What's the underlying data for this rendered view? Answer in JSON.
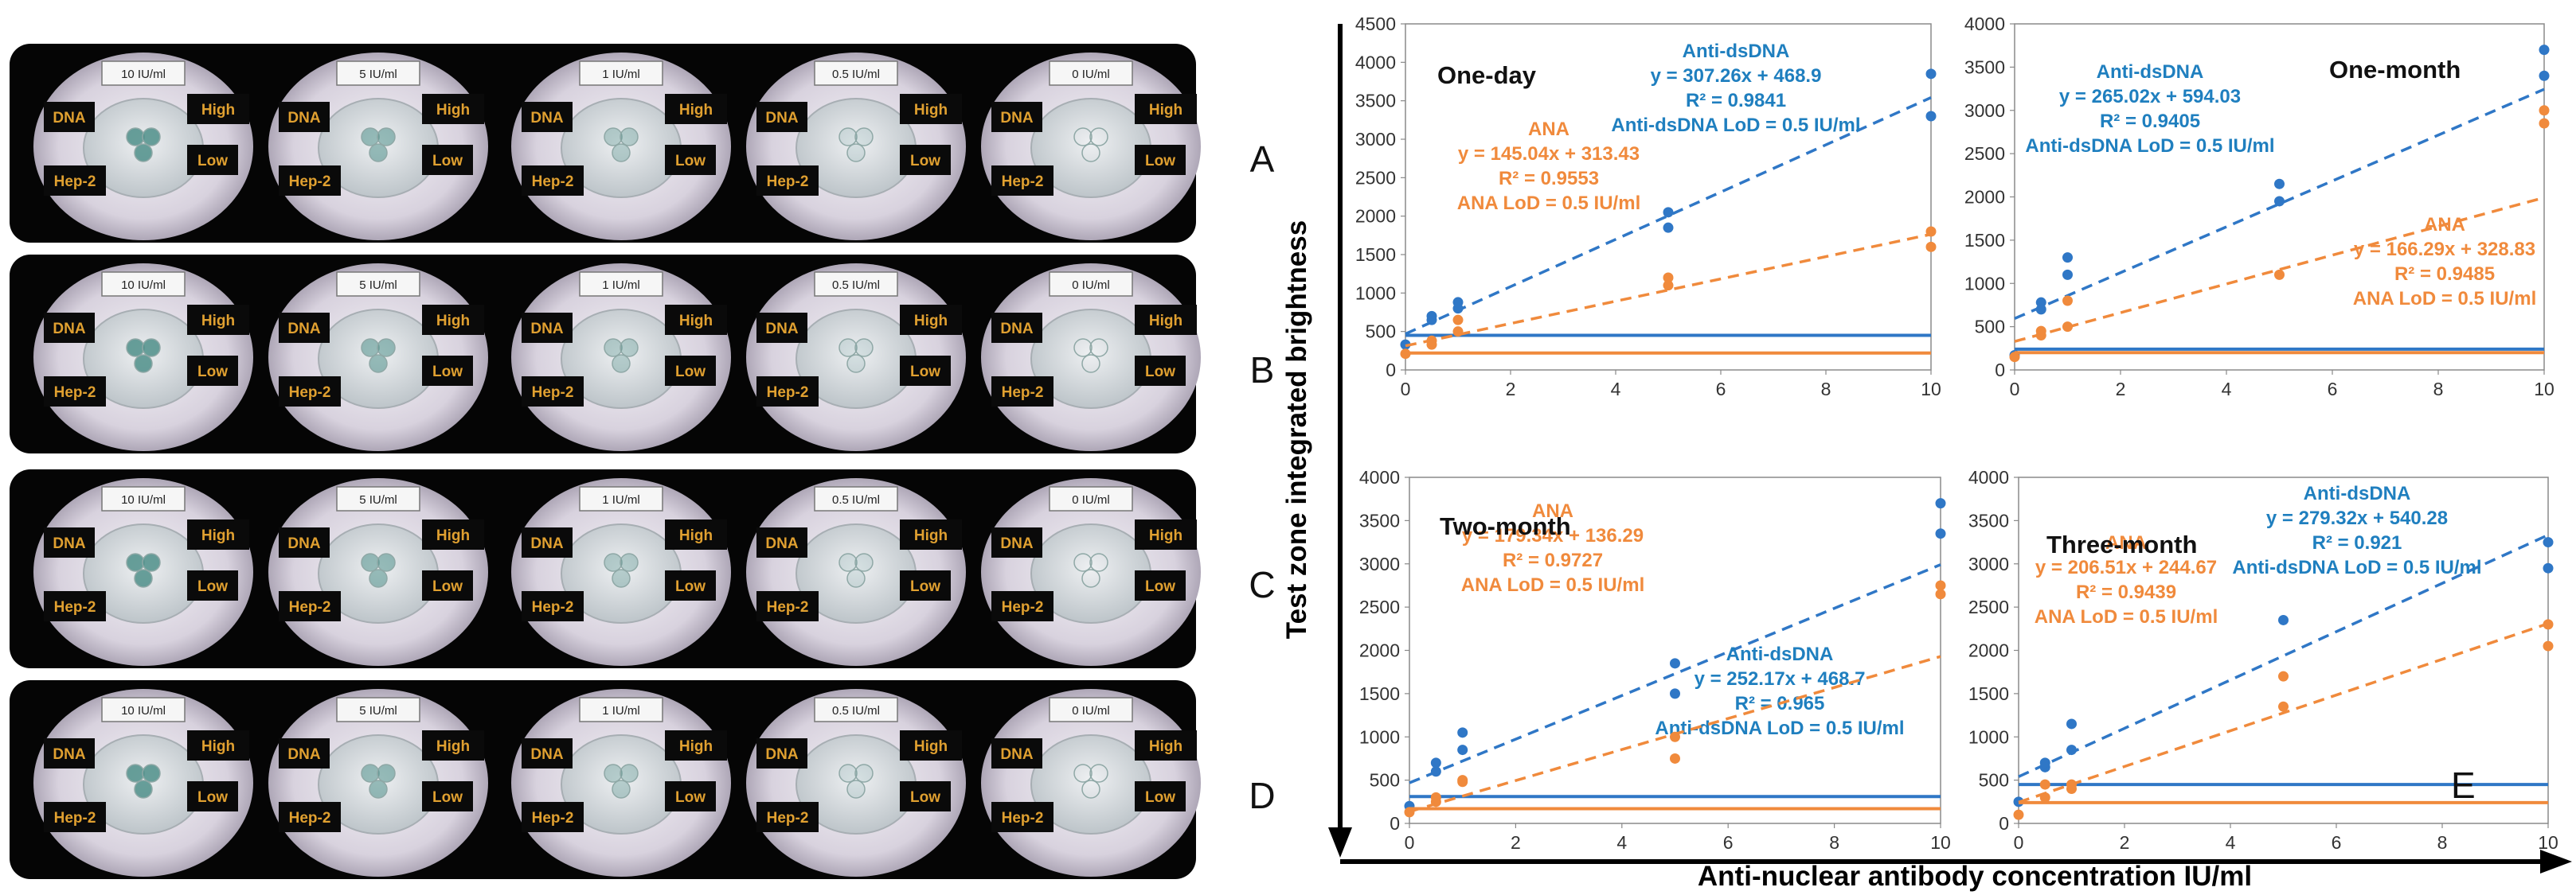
{
  "colors": {
    "blue": "#2f77c6",
    "orange": "#f08a3c",
    "ann_blue": "#1f7fbf",
    "panel_bg": "#050505",
    "label_box": "#0a0a0a",
    "label_text": "#e0a030"
  },
  "photo_panels": {
    "rows": [
      {
        "label": "A",
        "conc": [
          "10 IU/ml",
          "5 IU/ml",
          "1 IU/ml",
          "0.5 IU/ml",
          "0 IU/ml"
        ]
      },
      {
        "label": "B",
        "conc": [
          "10 IU/ml",
          "5 IU/ml",
          "1 IU/ml",
          "0.5 IU/ml",
          "0 IU/ml"
        ]
      },
      {
        "label": "C",
        "conc": [
          "10 IU/ml",
          "5 IU/ml",
          "1 IU/ml",
          "0.5 IU/ml",
          "0 IU/ml"
        ]
      },
      {
        "label": "D",
        "conc": [
          "10 IU/ml",
          "5 IU/ml",
          "1 IU/ml",
          "0.5 IU/ml",
          "0 IU/ml"
        ]
      }
    ],
    "zone_labels": {
      "dna": "DNA",
      "high": "High",
      "hep2": "Hep-2",
      "low": "Low"
    }
  },
  "figure": {
    "y_label": "Test zone integrated brightness",
    "x_label": "Anti-nuclear antibody concentration IU/ml",
    "panel_letter": "E"
  },
  "chart_data": [
    {
      "type": "scatter",
      "title": "One-day",
      "xlim": [
        0,
        10
      ],
      "ylim": [
        0,
        4500
      ],
      "x_ticks": [
        "0",
        "2",
        "4",
        "6",
        "8",
        "10"
      ],
      "y_ticks": [
        "0",
        "500",
        "1000",
        "1500",
        "2000",
        "2500",
        "3000",
        "3500",
        "4000",
        "4500"
      ],
      "series": [
        {
          "name": "Anti-dsDNA",
          "color": "blue",
          "points": [
            [
              0,
              330
            ],
            [
              0.5,
              650
            ],
            [
              0.5,
              700
            ],
            [
              1,
              800
            ],
            [
              1,
              880
            ],
            [
              5,
              1850
            ],
            [
              5,
              2050
            ],
            [
              10,
              3300
            ],
            [
              10,
              3850
            ]
          ],
          "fit": {
            "slope": 307.26,
            "intercept": 468.9
          },
          "lod_level": 450,
          "annotation": [
            "Anti-dsDNA",
            "y = 307.26x + 468.9",
            "R² = 0.9841",
            "Anti-dsDNA LoD = 0.5 IU/ml"
          ]
        },
        {
          "name": "ANA",
          "color": "orange",
          "points": [
            [
              0,
              210
            ],
            [
              0.5,
              330
            ],
            [
              0.5,
              380
            ],
            [
              1,
              500
            ],
            [
              1,
              650
            ],
            [
              5,
              1100
            ],
            [
              5,
              1200
            ],
            [
              10,
              1600
            ],
            [
              10,
              1800
            ]
          ],
          "fit": {
            "slope": 145.04,
            "intercept": 313.43
          },
          "lod_level": 220,
          "annotation": [
            "ANA",
            "y = 145.04x + 313.43",
            "R² = 0.9553",
            "ANA LoD = 0.5 IU/ml"
          ]
        }
      ]
    },
    {
      "type": "scatter",
      "title": "One-month",
      "xlim": [
        0,
        10
      ],
      "ylim": [
        0,
        4000
      ],
      "x_ticks": [
        "0",
        "2",
        "4",
        "6",
        "8",
        "10"
      ],
      "y_ticks": [
        "0",
        "500",
        "1000",
        "1500",
        "2000",
        "2500",
        "3000",
        "3500",
        "4000"
      ],
      "series": [
        {
          "name": "Anti-dsDNA",
          "color": "blue",
          "points": [
            [
              0,
              170
            ],
            [
              0.5,
              700
            ],
            [
              0.5,
              780
            ],
            [
              1,
              1100
            ],
            [
              1,
              1300
            ],
            [
              5,
              1950
            ],
            [
              5,
              2150
            ],
            [
              10,
              3400
            ],
            [
              10,
              3700
            ]
          ],
          "fit": {
            "slope": 265.02,
            "intercept": 594.03
          },
          "lod_level": 240,
          "annotation": [
            "Anti-dsDNA",
            "y = 265.02x + 594.03",
            "R² = 0.9405",
            "Anti-dsDNA LoD = 0.5 IU/ml"
          ]
        },
        {
          "name": "ANA",
          "color": "orange",
          "points": [
            [
              0,
              150
            ],
            [
              0.5,
              400
            ],
            [
              0.5,
              450
            ],
            [
              1,
              500
            ],
            [
              1,
              800
            ],
            [
              5,
              1100
            ],
            [
              10,
              2850
            ],
            [
              10,
              3000
            ]
          ],
          "fit": {
            "slope": 166.29,
            "intercept": 328.83
          },
          "lod_level": 200,
          "annotation": [
            "ANA",
            "y = 166.29x + 328.83",
            "R² = 0.9485",
            "ANA LoD = 0.5 IU/ml"
          ]
        }
      ]
    },
    {
      "type": "scatter",
      "title": "Two-month",
      "xlim": [
        0,
        10
      ],
      "ylim": [
        0,
        4000
      ],
      "x_ticks": [
        "0",
        "2",
        "4",
        "6",
        "8",
        "10"
      ],
      "y_ticks": [
        "0",
        "500",
        "1000",
        "1500",
        "2000",
        "2500",
        "3000",
        "3500",
        "4000"
      ],
      "series": [
        {
          "name": "Anti-dsDNA",
          "color": "blue",
          "points": [
            [
              0,
              200
            ],
            [
              0.5,
              600
            ],
            [
              0.5,
              700
            ],
            [
              1,
              850
            ],
            [
              1,
              1050
            ],
            [
              5,
              1500
            ],
            [
              5,
              1850
            ],
            [
              10,
              3350
            ],
            [
              10,
              3700
            ]
          ],
          "fit": {
            "slope": 252.17,
            "intercept": 468.7
          },
          "lod_level": 310,
          "annotation": [
            "Anti-dsDNA",
            "y = 252.17x + 468.7",
            "R² = 0.965",
            "Anti-dsDNA LoD = 0.5 IU/ml"
          ]
        },
        {
          "name": "ANA",
          "color": "orange",
          "points": [
            [
              0,
              130
            ],
            [
              0.5,
              250
            ],
            [
              0.5,
              300
            ],
            [
              1,
              480
            ],
            [
              1,
              500
            ],
            [
              5,
              750
            ],
            [
              5,
              1000
            ],
            [
              10,
              2650
            ],
            [
              10,
              2750
            ]
          ],
          "fit": {
            "slope": 179.34,
            "intercept": 136.29
          },
          "lod_level": 170,
          "annotation": [
            "ANA",
            "y = 179.34x + 136.29",
            "R² = 0.9727",
            "ANA LoD = 0.5 IU/ml"
          ]
        }
      ]
    },
    {
      "type": "scatter",
      "title": "Three-month",
      "xlim": [
        0,
        10
      ],
      "ylim": [
        0,
        4000
      ],
      "x_ticks": [
        "0",
        "2",
        "4",
        "6",
        "8",
        "10"
      ],
      "y_ticks": [
        "0",
        "500",
        "1000",
        "1500",
        "2000",
        "2500",
        "3000",
        "3500",
        "4000"
      ],
      "series": [
        {
          "name": "Anti-dsDNA",
          "color": "blue",
          "points": [
            [
              0,
              250
            ],
            [
              0.5,
              650
            ],
            [
              0.5,
              700
            ],
            [
              1,
              850
            ],
            [
              1,
              1150
            ],
            [
              5,
              2350
            ],
            [
              10,
              2950
            ],
            [
              10,
              3250
            ]
          ],
          "fit": {
            "slope": 279.32,
            "intercept": 540.28
          },
          "lod_level": 450,
          "annotation": [
            "Anti-dsDNA",
            "y = 279.32x + 540.28",
            "R² = 0.921",
            "Anti-dsDNA LoD = 0.5 IU/ml"
          ]
        },
        {
          "name": "ANA",
          "color": "orange",
          "points": [
            [
              0,
              100
            ],
            [
              0.5,
              300
            ],
            [
              0.5,
              450
            ],
            [
              1,
              400
            ],
            [
              1,
              450
            ],
            [
              5,
              1350
            ],
            [
              5,
              1700
            ],
            [
              10,
              2050
            ],
            [
              10,
              2300
            ]
          ],
          "fit": {
            "slope": 206.51,
            "intercept": 244.67
          },
          "lod_level": 240,
          "annotation": [
            "ANA",
            "y = 206.51x + 244.67",
            "R² = 0.9439",
            "ANA LoD = 0.5 IU/ml"
          ]
        }
      ]
    }
  ]
}
